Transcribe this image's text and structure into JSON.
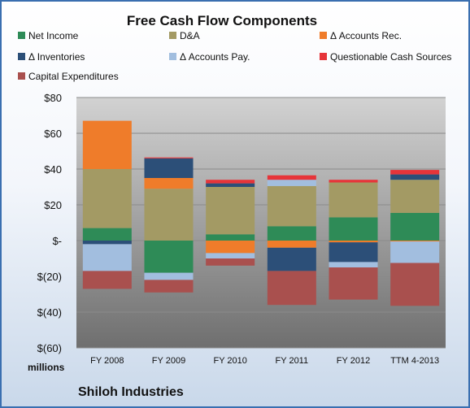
{
  "chart_data": {
    "type": "bar",
    "stacked": true,
    "title": "Free Cash Flow Components",
    "xlabel": "",
    "ylabel": "millions",
    "company": "Shiloh Industries",
    "ylim": [
      -60,
      80
    ],
    "yticks": [
      80,
      60,
      40,
      20,
      0,
      -20,
      -40,
      -60
    ],
    "ytick_labels": [
      "$80",
      "$60",
      "$40",
      "$20",
      "$-",
      "$(20)",
      "$(40)",
      "$(60)"
    ],
    "grid": true,
    "legend_position": "top",
    "categories": [
      "FY 2008",
      "FY 2009",
      "FY 2010",
      "FY 2011",
      "FY 2012",
      "TTM 4-2013"
    ],
    "series": [
      {
        "name": "Net Income",
        "color": "#2e8b57",
        "values": [
          7,
          -18,
          3.5,
          8,
          13,
          15.5
        ]
      },
      {
        "name": "D&A",
        "color": "#a39a64",
        "values": [
          33,
          29,
          26.5,
          22.5,
          19.5,
          18.5
        ]
      },
      {
        "name": "Δ Accounts Rec.",
        "color": "#ef7c2a",
        "values": [
          27,
          6,
          -7,
          -4,
          -1,
          -0.5
        ]
      },
      {
        "name": "Δ Inventories",
        "color": "#2c4f78",
        "values": [
          -2,
          11,
          2,
          -13,
          -11,
          3
        ]
      },
      {
        "name": "Δ Accounts Pay.",
        "color": "#a2bedf",
        "values": [
          -15,
          -4,
          -3,
          3.5,
          -3,
          -12
        ]
      },
      {
        "name": "Questionable Cash Sources",
        "color": "#e63439",
        "values": [
          0,
          0.5,
          2,
          2.5,
          1.5,
          2.5
        ]
      },
      {
        "name": "Capital Expenditures",
        "color": "#a9504e",
        "values": [
          -10,
          -7,
          -4,
          -19,
          -18,
          -24
        ]
      }
    ]
  }
}
